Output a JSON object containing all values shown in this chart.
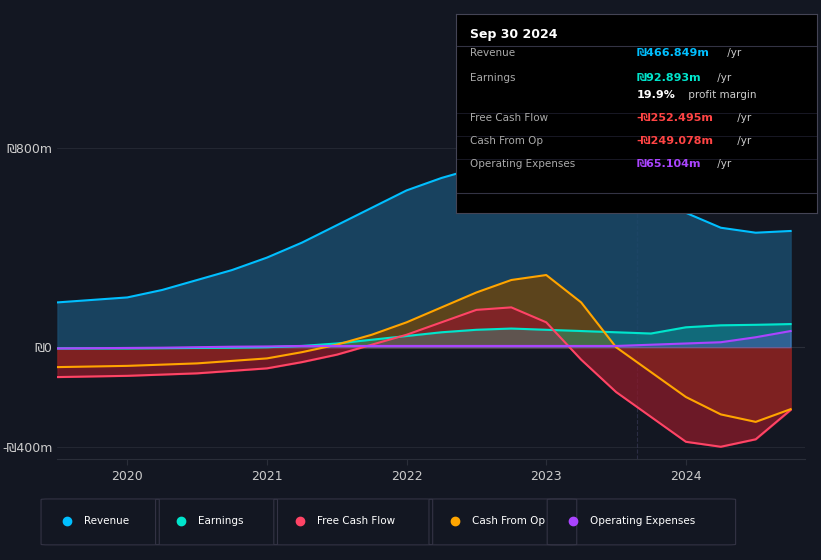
{
  "background_color": "#131722",
  "plot_bg_color": "#131722",
  "ylim": [
    -450,
    900
  ],
  "x_years": [
    2019.5,
    2020.0,
    2020.25,
    2020.5,
    2020.75,
    2021.0,
    2021.25,
    2021.5,
    2021.75,
    2022.0,
    2022.25,
    2022.5,
    2022.75,
    2023.0,
    2023.25,
    2023.5,
    2023.75,
    2024.0,
    2024.25,
    2024.5,
    2024.75
  ],
  "revenue": [
    180,
    200,
    230,
    270,
    310,
    360,
    420,
    490,
    560,
    630,
    680,
    720,
    750,
    760,
    740,
    700,
    640,
    540,
    480,
    460,
    467
  ],
  "earnings": [
    -5,
    -5,
    -4,
    -3,
    -2,
    0,
    5,
    15,
    30,
    45,
    60,
    70,
    75,
    70,
    65,
    60,
    55,
    80,
    88,
    90,
    93
  ],
  "free_cash_flow": [
    -120,
    -115,
    -110,
    -105,
    -95,
    -85,
    -60,
    -30,
    10,
    50,
    100,
    150,
    160,
    100,
    -50,
    -180,
    -280,
    -380,
    -400,
    -370,
    -252
  ],
  "cash_from_op": [
    -80,
    -75,
    -70,
    -65,
    -55,
    -45,
    -20,
    10,
    50,
    100,
    160,
    220,
    270,
    290,
    180,
    0,
    -100,
    -200,
    -270,
    -300,
    -249
  ],
  "operating_expenses": [
    -5,
    -3,
    -2,
    0,
    2,
    3,
    5,
    5,
    5,
    5,
    5,
    5,
    5,
    5,
    5,
    5,
    10,
    15,
    20,
    40,
    65
  ],
  "revenue_color": "#00bfff",
  "revenue_fill": "#1a4a6b",
  "earnings_color": "#00e5cc",
  "earnings_fill": "#00e5cc",
  "free_cash_flow_color": "#ff4466",
  "free_cash_flow_fill": "#8b1a2a",
  "cash_from_op_color": "#ffa500",
  "cash_from_op_fill": "#7a4500",
  "operating_expenses_color": "#aa44ff",
  "operating_expenses_fill": "#aa44ff",
  "grid_color": "#2a2e39",
  "text_color": "#cccccc",
  "table_title": "Sep 30 2024",
  "table_rows": [
    {
      "label": "Revenue",
      "val": "₪466.849m",
      "suffix": " /yr",
      "val_color": "#00bfff",
      "has_sep": false
    },
    {
      "label": "Earnings",
      "val": "₪92.893m",
      "suffix": " /yr",
      "val_color": "#00e5cc",
      "has_sep": false
    },
    {
      "label": "",
      "val": "19.9%",
      "suffix": " profit margin",
      "val_color": "#ffffff",
      "has_sep": false
    },
    {
      "label": "Free Cash Flow",
      "val": "-₪252.495m",
      "suffix": " /yr",
      "val_color": "#ff4444",
      "has_sep": true
    },
    {
      "label": "Cash From Op",
      "val": "-₪249.078m",
      "suffix": " /yr",
      "val_color": "#ff4444",
      "has_sep": true
    },
    {
      "label": "Operating Expenses",
      "val": "₪65.104m",
      "suffix": " /yr",
      "val_color": "#aa44ff",
      "has_sep": true
    }
  ],
  "legend_items": [
    {
      "label": "Revenue",
      "color": "#00bfff"
    },
    {
      "label": "Earnings",
      "color": "#00e5cc"
    },
    {
      "label": "Free Cash Flow",
      "color": "#ff4466"
    },
    {
      "label": "Cash From Op",
      "color": "#ffa500"
    },
    {
      "label": "Operating Expenses",
      "color": "#aa44ff"
    }
  ]
}
